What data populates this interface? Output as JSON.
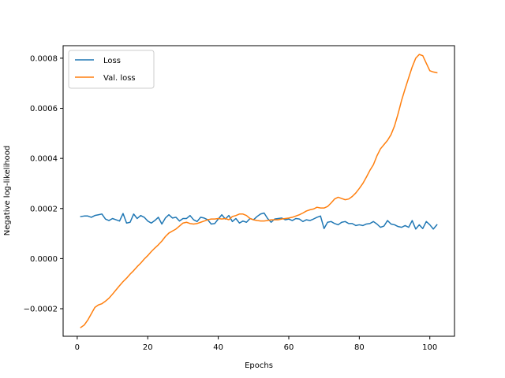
{
  "chart_data": {
    "type": "line",
    "title": "",
    "xlabel": "Epochs",
    "ylabel": "Negative log-likelihood",
    "xlim": [
      -4,
      107
    ],
    "ylim": [
      -0.00031,
      0.00085
    ],
    "xticks": [
      0,
      20,
      40,
      60,
      80,
      100
    ],
    "yticks": [
      -0.0002,
      0.0,
      0.0002,
      0.0004,
      0.0006,
      0.0008
    ],
    "ytick_labels": [
      "−0.0002",
      "0.0000",
      "0.0002",
      "0.0004",
      "0.0006",
      "0.0008"
    ],
    "grid": false,
    "legend_position": "upper-left",
    "x": [
      1,
      2,
      3,
      4,
      5,
      6,
      7,
      8,
      9,
      10,
      11,
      12,
      13,
      14,
      15,
      16,
      17,
      18,
      19,
      20,
      21,
      22,
      23,
      24,
      25,
      26,
      27,
      28,
      29,
      30,
      31,
      32,
      33,
      34,
      35,
      36,
      37,
      38,
      39,
      40,
      41,
      42,
      43,
      44,
      45,
      46,
      47,
      48,
      49,
      50,
      51,
      52,
      53,
      54,
      55,
      56,
      57,
      58,
      59,
      60,
      61,
      62,
      63,
      64,
      65,
      66,
      67,
      68,
      69,
      70,
      71,
      72,
      73,
      74,
      75,
      76,
      77,
      78,
      79,
      80,
      81,
      82,
      83,
      84,
      85,
      86,
      87,
      88,
      89,
      90,
      91,
      92,
      93,
      94,
      95,
      96,
      97,
      98,
      99,
      100,
      101,
      102
    ],
    "series": [
      {
        "name": "Loss",
        "color": "#1f77b4",
        "values": [
          0.000168,
          0.00017,
          0.00017,
          0.000165,
          0.000172,
          0.000175,
          0.000178,
          0.000158,
          0.000152,
          0.00016,
          0.000155,
          0.00015,
          0.00018,
          0.000142,
          0.000145,
          0.000178,
          0.00016,
          0.000172,
          0.000165,
          0.00015,
          0.000142,
          0.000152,
          0.000165,
          0.000138,
          0.000162,
          0.000175,
          0.000162,
          0.000165,
          0.00015,
          0.00016,
          0.00016,
          0.000172,
          0.000155,
          0.000148,
          0.000165,
          0.000162,
          0.000155,
          0.000138,
          0.00014,
          0.000158,
          0.000175,
          0.000158,
          0.000172,
          0.000148,
          0.00016,
          0.000142,
          0.00015,
          0.000145,
          0.00016,
          0.000155,
          0.000168,
          0.000178,
          0.000182,
          0.00016,
          0.000145,
          0.000158,
          0.00016,
          0.000162,
          0.000155,
          0.000158,
          0.000152,
          0.00016,
          0.000158,
          0.000148,
          0.000155,
          0.000152,
          0.000158,
          0.000165,
          0.00017,
          0.00012,
          0.000145,
          0.000148,
          0.00014,
          0.000135,
          0.000145,
          0.000148,
          0.00014,
          0.00014,
          0.000132,
          0.000135,
          0.000132,
          0.000138,
          0.00014,
          0.000148,
          0.000138,
          0.000125,
          0.00013,
          0.000152,
          0.000138,
          0.000135,
          0.000128,
          0.000125,
          0.000132,
          0.000125,
          0.000152,
          0.000118,
          0.000135,
          0.00012,
          0.000148,
          0.000135,
          0.000118,
          0.000135
        ]
      },
      {
        "name": "Val. loss",
        "color": "#ff7f0e",
        "values": [
          -0.000275,
          -0.000265,
          -0.000245,
          -0.00022,
          -0.000195,
          -0.000185,
          -0.00018,
          -0.00017,
          -0.000158,
          -0.000142,
          -0.000125,
          -0.000108,
          -9.2e-05,
          -7.8e-05,
          -6.2e-05,
          -4.8e-05,
          -3.2e-05,
          -1.8e-05,
          -2e-06,
          1.2e-05,
          2.8e-05,
          4.2e-05,
          5.5e-05,
          7e-05,
          8.8e-05,
          0.000102,
          0.00011,
          0.000118,
          0.00013,
          0.000142,
          0.000145,
          0.00014,
          0.000138,
          0.00014,
          0.000145,
          0.00015,
          0.000155,
          0.000158,
          0.000158,
          0.00016,
          0.000158,
          0.00016,
          0.000155,
          0.000168,
          0.000172,
          0.000178,
          0.000178,
          0.000172,
          0.00016,
          0.000155,
          0.000152,
          0.00015,
          0.00015,
          0.000152,
          0.000155,
          0.000155,
          0.000155,
          0.000158,
          0.00016,
          0.000162,
          0.000165,
          0.00017,
          0.000175,
          0.000182,
          0.00019,
          0.000195,
          0.000198,
          0.000205,
          0.000202,
          0.000202,
          0.000208,
          0.000222,
          0.000238,
          0.000245,
          0.00024,
          0.000235,
          0.000238,
          0.000248,
          0.000262,
          0.00028,
          0.0003,
          0.000325,
          0.000352,
          0.000375,
          0.00041,
          0.000438,
          0.000455,
          0.000472,
          0.000495,
          0.00053,
          0.000578,
          0.000632,
          0.000678,
          0.000722,
          0.000765,
          0.0008,
          0.000815,
          0.00081,
          0.00078,
          0.00075,
          0.000745,
          0.000742
        ]
      }
    ]
  }
}
